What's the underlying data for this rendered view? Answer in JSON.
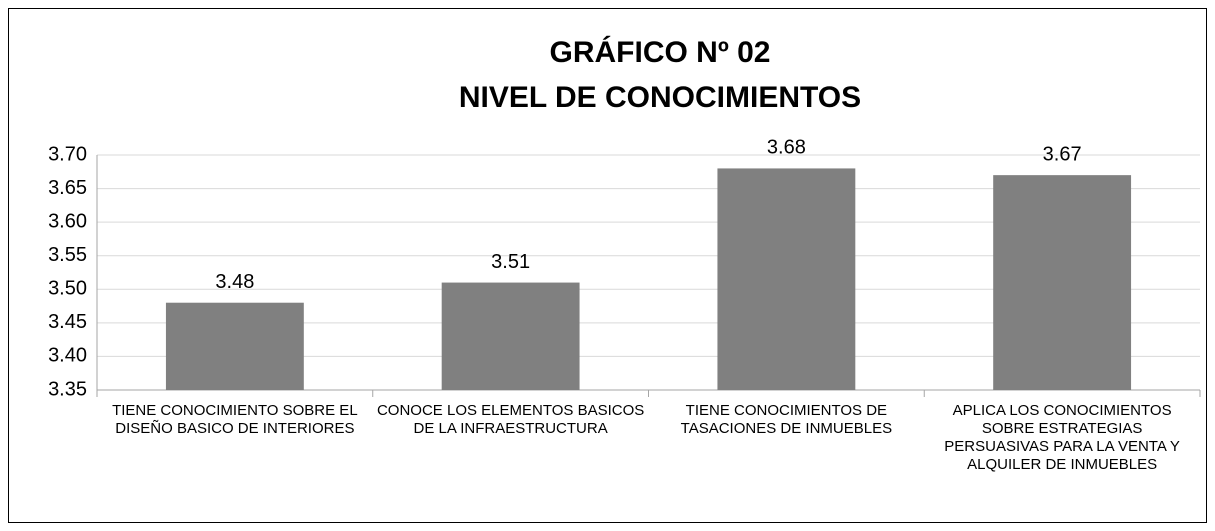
{
  "chart_data": {
    "type": "bar",
    "title": "GRÁFICO Nº 02",
    "subtitle": "NIVEL DE CONOCIMIENTOS",
    "categories": [
      "TIENE CONOCIMIENTO SOBRE EL DISEÑO BASICO DE INTERIORES",
      "CONOCE LOS ELEMENTOS BASICOS DE LA INFRAESTRUCTURA",
      "TIENE CONOCIMIENTOS DE TASACIONES DE INMUEBLES",
      "APLICA LOS CONOCIMIENTOS SOBRE ESTRATEGIAS PERSUASIVAS PARA LA VENTA Y ALQUILER DE INMUEBLES"
    ],
    "values": [
      3.48,
      3.51,
      3.68,
      3.67
    ],
    "color": "#808080",
    "ylim": [
      3.35,
      3.7
    ],
    "yticks": [
      3.35,
      {
        "value": 3.4,
        "label": "3.40"
      },
      3.45,
      {
        "value": 3.5,
        "label": "3.50"
      },
      3.55,
      {
        "value": 3.6,
        "label": "3.60"
      },
      3.65,
      {
        "value": 3.7,
        "label": "3.70"
      }
    ],
    "grid": true
  }
}
